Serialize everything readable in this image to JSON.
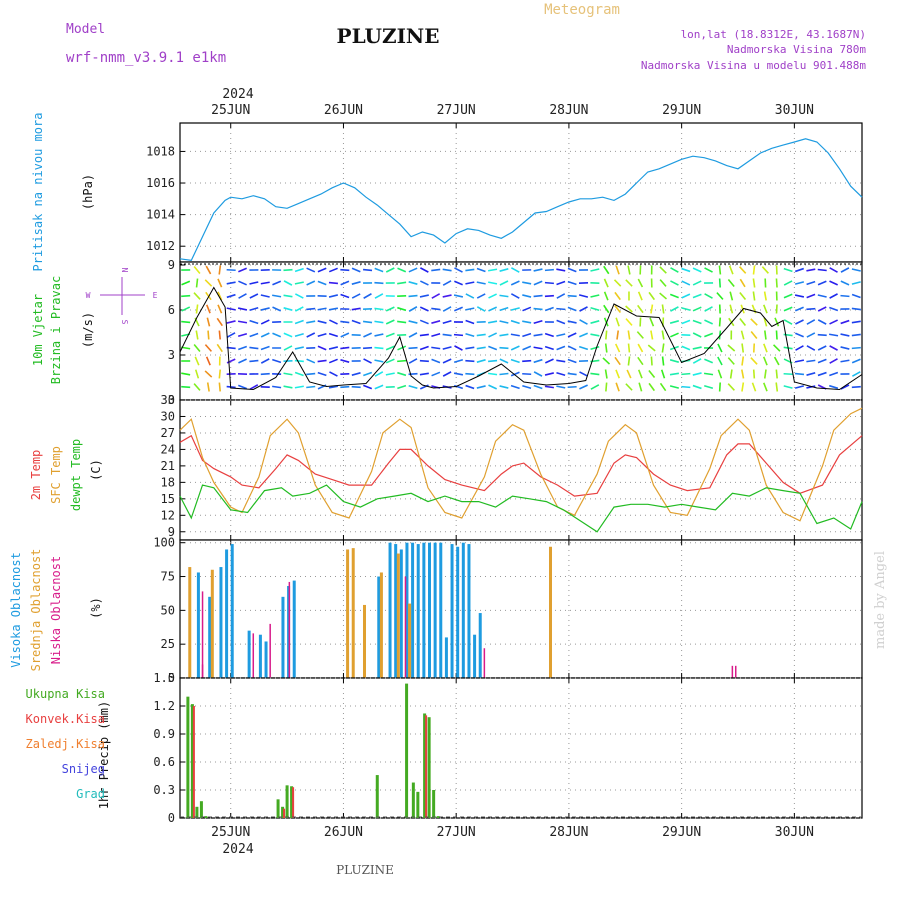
{
  "header": {
    "model_label": "Model",
    "model_name": "wrf-nmm_v3.9.1 e1km",
    "station": "PLUZINE",
    "product": "Meteogram",
    "lonlat": "lon,lat (18.8312E, 43.1687N)",
    "altitude": "Nadmorska Visina 780m",
    "model_altitude": "Nadmorska Visina u modelu 901.488m",
    "year_top": "2024",
    "year_bottom": "2024",
    "footer_station": "PLUZINE",
    "watermark": "made by Angel"
  },
  "colors": {
    "pressure": "#1e9be0",
    "t2m": "#e84040",
    "tsfc": "#e0a030",
    "dewpt": "#22bb22",
    "high_cloud": "#1e9be0",
    "mid_cloud": "#e0a030",
    "low_cloud": "#d81b8a",
    "total_precip": "#44aa22",
    "convective": "#e84040",
    "frozen": "#f08030",
    "snow": "#4444dd",
    "hail": "#22bbbb",
    "purple": "#a040c8"
  },
  "chart_data": [
    {
      "type": "line",
      "panel": "pressure",
      "ylabel_main": "Pritisak na nivou mora",
      "ylabel_unit": "(hPa)",
      "xlim": [
        -0.45,
        5.6
      ],
      "ylim": [
        1011,
        1019.8
      ],
      "yticks": [
        "1012",
        "1014",
        "1016",
        "1018"
      ],
      "xticks": [
        "25JUN",
        "26JUN",
        "27JUN",
        "28JUN",
        "29JUN",
        "30JUN"
      ],
      "grid": true,
      "series": [
        {
          "x": [
            -0.45,
            -0.35,
            -0.25,
            -0.15,
            -0.05,
            0.0,
            0.1,
            0.2,
            0.3,
            0.4,
            0.5,
            0.6,
            0.7,
            0.8,
            0.9,
            1.0,
            1.1,
            1.2,
            1.3,
            1.4,
            1.5,
            1.6,
            1.7,
            1.8,
            1.9,
            2.0,
            2.1,
            2.2,
            2.3,
            2.4,
            2.5,
            2.6,
            2.7,
            2.8,
            2.9,
            3.0,
            3.1,
            3.2,
            3.3,
            3.4,
            3.5,
            3.6,
            3.7,
            3.8,
            3.9,
            4.0,
            4.1,
            4.2,
            4.3,
            4.4,
            4.5,
            4.6,
            4.7,
            4.8,
            4.9,
            5.0,
            5.1,
            5.2,
            5.3,
            5.4,
            5.5,
            5.6
          ],
          "y": [
            1011.2,
            1011.1,
            1012.6,
            1014.1,
            1014.9,
            1015.1,
            1015.0,
            1015.2,
            1015.0,
            1014.5,
            1014.4,
            1014.7,
            1015.0,
            1015.3,
            1015.7,
            1016.0,
            1015.7,
            1015.1,
            1014.6,
            1014.0,
            1013.4,
            1012.6,
            1012.9,
            1012.7,
            1012.2,
            1012.8,
            1013.1,
            1013.0,
            1012.7,
            1012.5,
            1012.9,
            1013.5,
            1014.1,
            1014.2,
            1014.5,
            1014.8,
            1015.0,
            1015.0,
            1015.1,
            1014.9,
            1015.3,
            1016.0,
            1016.7,
            1016.9,
            1017.2,
            1017.5,
            1017.7,
            1017.6,
            1017.4,
            1017.1,
            1016.9,
            1017.4,
            1017.9,
            1018.2,
            1018.4,
            1018.6,
            1018.8,
            1018.6,
            1017.9,
            1016.9,
            1015.8,
            1015.1
          ]
        }
      ]
    },
    {
      "type": "line",
      "panel": "wind",
      "ylabel_main": "10m Vjetar",
      "ylabel_main2": "Brzina i Pravac",
      "ylabel_unit": "(m/s)",
      "compass": {
        "n": "N",
        "e": "E",
        "w": "W",
        "s": "S"
      },
      "xlim": [
        -0.45,
        5.6
      ],
      "ylim": [
        0,
        9.2
      ],
      "yticks": [
        "0",
        "3",
        "6",
        "9"
      ],
      "series": [
        {
          "name": "speed",
          "x": [
            -0.45,
            -0.3,
            -0.15,
            -0.05,
            0.0,
            0.2,
            0.4,
            0.55,
            0.7,
            0.85,
            1.0,
            1.2,
            1.4,
            1.5,
            1.6,
            1.7,
            1.8,
            2.0,
            2.2,
            2.4,
            2.6,
            2.8,
            3.0,
            3.15,
            3.25,
            3.4,
            3.6,
            3.8,
            4.0,
            4.2,
            4.4,
            4.55,
            4.7,
            4.8,
            4.9,
            5.0,
            5.2,
            5.4,
            5.6
          ],
          "y": [
            3.2,
            5.5,
            7.5,
            6.2,
            0.8,
            0.7,
            1.5,
            3.2,
            1.2,
            0.9,
            1.0,
            1.1,
            2.8,
            4.2,
            1.6,
            1.0,
            0.8,
            0.9,
            1.6,
            2.4,
            1.2,
            1.0,
            1.1,
            1.3,
            3.6,
            6.4,
            5.6,
            5.5,
            2.5,
            3.1,
            4.8,
            6.1,
            5.8,
            4.9,
            5.3,
            1.2,
            0.8,
            0.7,
            1.7
          ]
        }
      ]
    },
    {
      "type": "line",
      "panel": "temperature",
      "ylabel_t2m": "2m Temp",
      "ylabel_tsfc": "SFC Temp",
      "ylabel_dew": "dewpt Temp",
      "ylabel_unit": "(C)",
      "xlim": [
        -0.45,
        5.6
      ],
      "ylim": [
        7.5,
        33
      ],
      "yticks": [
        "9",
        "12",
        "15",
        "18",
        "21",
        "24",
        "27",
        "30",
        "33"
      ],
      "series": [
        {
          "name": "t2m",
          "x": [
            -0.45,
            -0.35,
            -0.25,
            -0.15,
            0.0,
            0.1,
            0.25,
            0.4,
            0.5,
            0.6,
            0.75,
            0.9,
            1.05,
            1.25,
            1.4,
            1.5,
            1.6,
            1.75,
            1.9,
            2.05,
            2.25,
            2.4,
            2.5,
            2.6,
            2.75,
            2.9,
            3.05,
            3.25,
            3.4,
            3.5,
            3.6,
            3.75,
            3.9,
            4.05,
            4.25,
            4.4,
            4.5,
            4.6,
            4.75,
            4.9,
            5.05,
            5.25,
            5.4,
            5.6
          ],
          "y": [
            25.3,
            26.5,
            22.0,
            20.5,
            19.0,
            17.5,
            17.0,
            20.5,
            23.0,
            22.0,
            19.5,
            18.5,
            17.5,
            17.5,
            21.5,
            24.0,
            24.0,
            21.0,
            18.5,
            17.5,
            16.5,
            19.5,
            21.0,
            21.5,
            19.0,
            17.5,
            15.5,
            16.0,
            21.5,
            23.0,
            22.5,
            19.5,
            17.5,
            16.5,
            17.0,
            23.0,
            25.0,
            25.0,
            21.5,
            18.0,
            16.0,
            17.5,
            23.0,
            26.5
          ]
        },
        {
          "name": "tsfc",
          "x": [
            -0.45,
            -0.35,
            -0.25,
            -0.15,
            0.0,
            0.1,
            0.25,
            0.35,
            0.5,
            0.6,
            0.75,
            0.9,
            1.05,
            1.25,
            1.35,
            1.5,
            1.6,
            1.75,
            1.9,
            2.05,
            2.25,
            2.35,
            2.5,
            2.6,
            2.75,
            2.9,
            3.05,
            3.25,
            3.35,
            3.5,
            3.6,
            3.75,
            3.9,
            4.05,
            4.25,
            4.35,
            4.5,
            4.6,
            4.75,
            4.9,
            5.05,
            5.25,
            5.35,
            5.5,
            5.6
          ],
          "y": [
            27.5,
            29.5,
            22.5,
            18.0,
            13.5,
            12.5,
            19.0,
            26.5,
            29.5,
            27.0,
            17.5,
            12.5,
            11.5,
            20.0,
            27.0,
            29.5,
            28.0,
            17.0,
            12.5,
            11.5,
            19.0,
            25.5,
            28.5,
            27.5,
            19.5,
            13.5,
            12.0,
            19.5,
            25.5,
            28.5,
            27.0,
            17.5,
            12.5,
            12.0,
            20.5,
            26.5,
            29.5,
            27.5,
            17.5,
            12.5,
            11.0,
            21.0,
            27.5,
            30.5,
            31.5
          ]
        },
        {
          "name": "dewpt",
          "x": [
            -0.45,
            -0.35,
            -0.25,
            -0.15,
            0.0,
            0.15,
            0.3,
            0.45,
            0.55,
            0.7,
            0.85,
            1.0,
            1.15,
            1.3,
            1.45,
            1.6,
            1.75,
            1.9,
            2.05,
            2.2,
            2.35,
            2.5,
            2.65,
            2.8,
            2.95,
            3.1,
            3.25,
            3.4,
            3.55,
            3.7,
            3.85,
            4.0,
            4.15,
            4.3,
            4.45,
            4.6,
            4.75,
            4.9,
            5.05,
            5.2,
            5.35,
            5.5,
            5.6
          ],
          "y": [
            15.5,
            11.5,
            17.5,
            17.0,
            13.0,
            12.5,
            16.5,
            17.0,
            15.5,
            16.0,
            17.5,
            14.5,
            13.5,
            15.0,
            15.5,
            16.0,
            14.5,
            15.5,
            14.5,
            14.5,
            13.5,
            15.5,
            15.0,
            14.5,
            13.0,
            11.0,
            9.0,
            13.5,
            14.0,
            14.0,
            13.5,
            14.0,
            13.5,
            13.0,
            16.0,
            15.5,
            17.0,
            16.5,
            16.0,
            10.5,
            11.5,
            9.5,
            14.5
          ]
        }
      ]
    },
    {
      "type": "bar",
      "panel": "cloud",
      "ylabel_high": "Visoka Oblacnost",
      "ylabel_mid": "Srednja Oblacnost",
      "ylabel_low": "Niska Oblacnost",
      "ylabel_unit": "(%)",
      "xlim": [
        -0.45,
        5.6
      ],
      "ylim": [
        0,
        102
      ],
      "yticks": [
        "0",
        "25",
        "50",
        "75",
        "100"
      ],
      "series": [
        {
          "name": "high",
          "x": [
            -0.3,
            -0.2,
            -0.1,
            -0.05,
            0.0,
            0.15,
            0.25,
            0.3,
            0.45,
            0.5,
            0.55,
            1.3,
            1.4,
            1.45,
            1.5,
            1.55,
            1.6,
            1.65,
            1.7,
            1.75,
            1.8,
            1.85,
            1.9,
            1.95,
            2.0,
            2.05,
            2.1,
            2.15,
            2.2
          ],
          "y": [
            78,
            60,
            82,
            95,
            99,
            35,
            32,
            27,
            60,
            68,
            72,
            75,
            100,
            99,
            95,
            100,
            100,
            99,
            100,
            100,
            100,
            100,
            30,
            99,
            97,
            100,
            99,
            32,
            48
          ]
        },
        {
          "name": "mid",
          "x": [
            -0.35,
            -0.15,
            1.05,
            1.1,
            1.2,
            1.35,
            1.5,
            1.6,
            2.85
          ],
          "y": [
            82,
            80,
            95,
            96,
            54,
            78,
            92,
            55,
            97
          ]
        },
        {
          "name": "low",
          "x": [
            -0.25,
            -0.25,
            0.2,
            0.35,
            0.52,
            1.55,
            2.25,
            4.45,
            4.48
          ],
          "y": [
            10,
            64,
            33,
            40,
            71,
            75,
            22,
            9,
            9
          ]
        }
      ]
    },
    {
      "type": "bar",
      "panel": "precip",
      "ylabel_unit": "1hr Precip (mm)",
      "legend": [
        "Ukupna Kisa",
        "Konvek.Kisa",
        "Zaledj.Kisa",
        "Snijeg",
        "Grad"
      ],
      "xlim": [
        -0.45,
        5.6
      ],
      "ylim": [
        0,
        1.5
      ],
      "yticks": [
        "0",
        "0.3",
        "0.6",
        "0.9",
        "1.2",
        "1.5"
      ],
      "xticks": [
        "25JUN",
        "26JUN",
        "27JUN",
        "28JUN",
        "29JUN",
        "30JUN"
      ],
      "series": [
        {
          "name": "total",
          "x": [
            -0.38,
            -0.34,
            -0.3,
            -0.26,
            -0.22,
            0.42,
            0.46,
            0.5,
            0.54,
            1.3,
            1.56,
            1.62,
            1.66,
            1.72,
            1.76,
            1.8,
            1.84
          ],
          "y": [
            1.3,
            1.22,
            0.12,
            0.18,
            0.02,
            0.2,
            0.12,
            0.35,
            0.34,
            0.46,
            1.44,
            0.38,
            0.28,
            1.12,
            1.08,
            0.3,
            0.02
          ]
        },
        {
          "name": "convective",
          "x": [
            -0.34,
            0.46,
            0.54,
            1.72
          ],
          "y": [
            1.2,
            0.1,
            0.33,
            1.1
          ]
        }
      ]
    }
  ]
}
